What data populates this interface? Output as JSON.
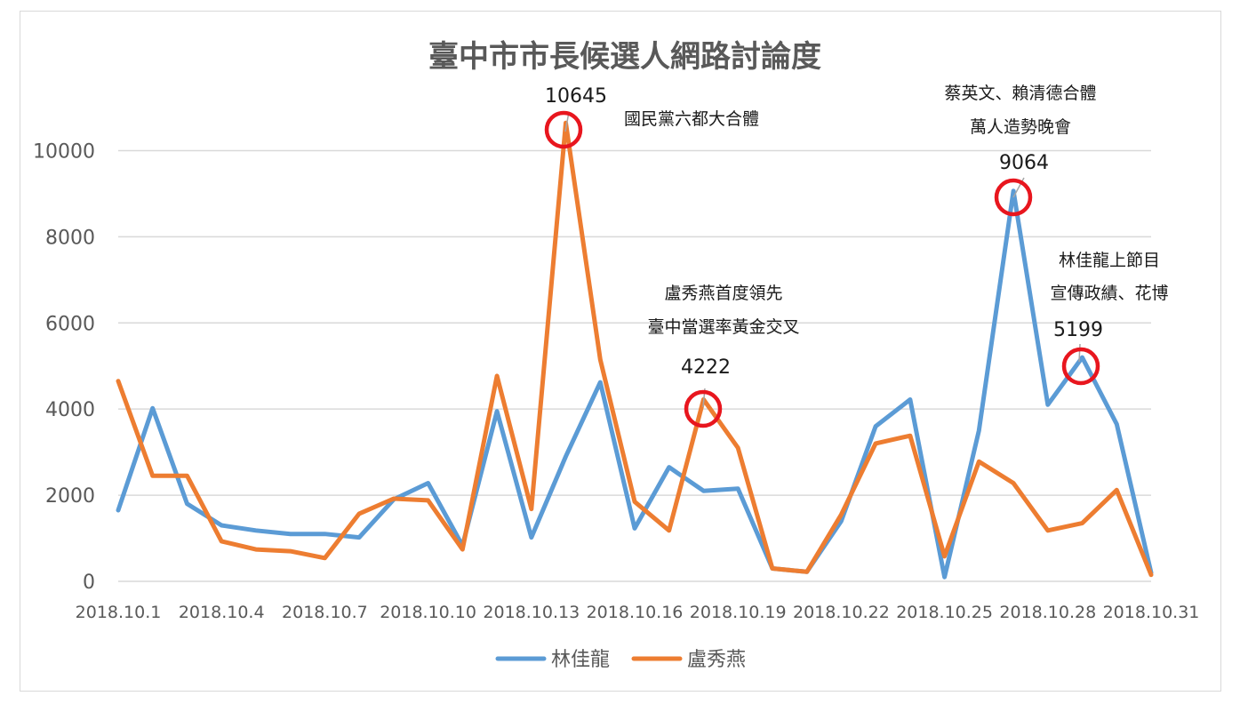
{
  "chart_data": {
    "type": "line",
    "title": "臺中市市長候選人網路討論度",
    "xlabel": "",
    "ylabel": "",
    "ylim": [
      0,
      11000
    ],
    "yticks": [
      0,
      2000,
      4000,
      6000,
      8000,
      10000
    ],
    "grid": true,
    "legend_position": "bottom",
    "x": [
      "2018.10.1",
      "2018.10.2",
      "2018.10.3",
      "2018.10.4",
      "2018.10.5",
      "2018.10.6",
      "2018.10.7",
      "2018.10.8",
      "2018.10.9",
      "2018.10.10",
      "2018.10.11",
      "2018.10.12",
      "2018.10.13",
      "2018.10.14",
      "2018.10.15",
      "2018.10.16",
      "2018.10.17",
      "2018.10.18",
      "2018.10.19",
      "2018.10.20",
      "2018.10.21",
      "2018.10.22",
      "2018.10.23",
      "2018.10.24",
      "2018.10.25",
      "2018.10.26",
      "2018.10.27",
      "2018.10.28",
      "2018.10.29",
      "2018.10.30",
      "2018.10.31"
    ],
    "x_tick_labels": [
      "2018.10.1",
      "2018.10.4",
      "2018.10.7",
      "2018.10.10",
      "2018.10.13",
      "2018.10.16",
      "2018.10.19",
      "2018.10.22",
      "2018.10.25",
      "2018.10.28",
      "2018.10.31"
    ],
    "series": [
      {
        "name": "林佳龍",
        "color": "#5b9bd5",
        "values": [
          1650,
          4020,
          1800,
          1300,
          1180,
          1100,
          1100,
          1020,
          1900,
          2280,
          830,
          3950,
          1020,
          2900,
          4620,
          1230,
          2650,
          2100,
          2150,
          300,
          220,
          1400,
          3600,
          4220,
          100,
          3500,
          9064,
          4100,
          5199,
          3650,
          200
        ]
      },
      {
        "name": "盧秀燕",
        "color": "#ed7d31",
        "values": [
          4650,
          2450,
          2450,
          930,
          740,
          700,
          540,
          1570,
          1920,
          1880,
          740,
          4770,
          1680,
          10645,
          5150,
          1850,
          1180,
          4222,
          3100,
          300,
          220,
          1550,
          3200,
          3380,
          580,
          2780,
          2280,
          1180,
          1350,
          2120,
          150
        ]
      }
    ],
    "annotations": [
      {
        "series": 1,
        "index": 13,
        "value_label": "10645",
        "text": [
          "國民黨六都大合體"
        ]
      },
      {
        "series": 1,
        "index": 17,
        "value_label": "4222",
        "text": [
          "盧秀燕首度領先",
          "臺中當選率黃金交叉"
        ]
      },
      {
        "series": 0,
        "index": 26,
        "value_label": "9064",
        "text": [
          "蔡英文、賴清德合體",
          "萬人造勢晚會"
        ]
      },
      {
        "series": 0,
        "index": 28,
        "value_label": "5199",
        "text": [
          "林佳龍上節目",
          "宣傳政績、花博"
        ]
      }
    ],
    "highlight_color": "#e8161e",
    "leader_color": "#a6a6a6",
    "grid_color": "#d9d9d9"
  }
}
